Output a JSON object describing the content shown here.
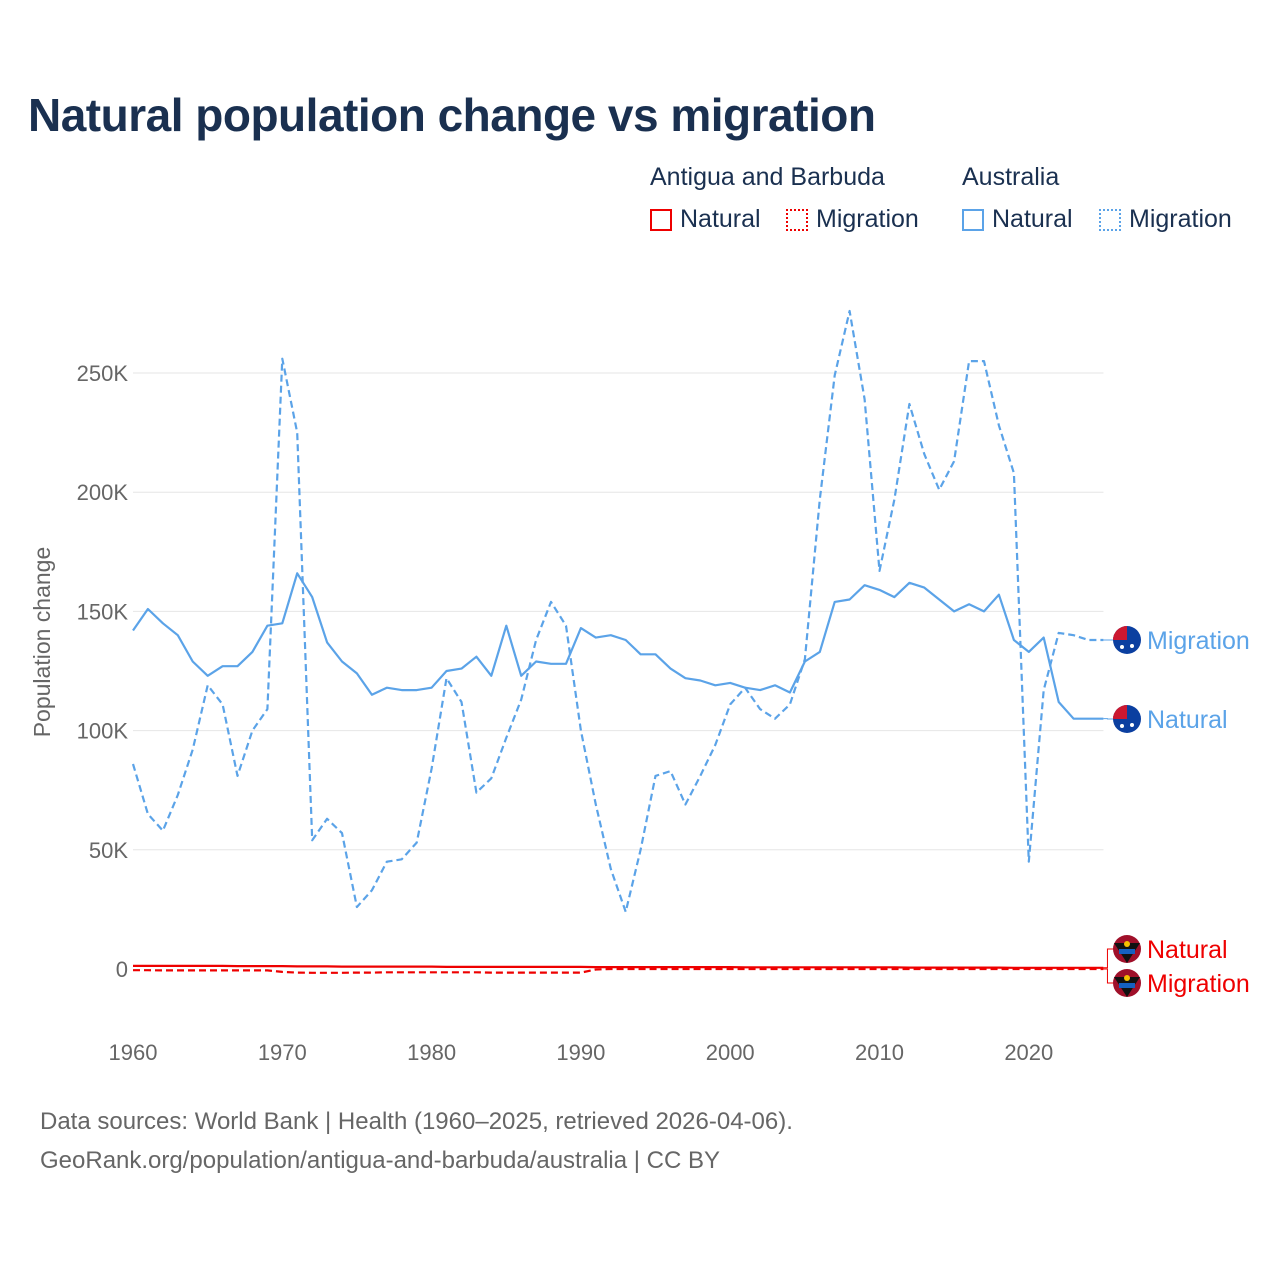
{
  "title": "Natural population change vs migration",
  "legend": {
    "groups": [
      {
        "name": "Antigua and Barbuda",
        "items": [
          "Natural",
          "Migration"
        ],
        "color": "#ee0000"
      },
      {
        "name": "Australia",
        "items": [
          "Natural",
          "Migration"
        ],
        "color": "#5ba3e8"
      }
    ]
  },
  "footer": {
    "line1": "Data sources: World Bank | Health (1960–2025, retrieved 2026-04-06).",
    "line2": "GeoRank.org/population/antigua-and-barbuda/australia | CC BY"
  },
  "chart_data": {
    "type": "line",
    "title": "Natural population change vs migration",
    "xlabel": "",
    "ylabel": "Population change",
    "xlim": [
      1960,
      2025
    ],
    "ylim": [
      -15000,
      280000
    ],
    "x_ticks": [
      1960,
      1970,
      1980,
      1990,
      2000,
      2010,
      2020
    ],
    "x_tick_labels": [
      "1960",
      "1970",
      "1980",
      "1990",
      "2000",
      "2010",
      "2020"
    ],
    "y_ticks": [
      0,
      50000,
      100000,
      150000,
      200000,
      250000
    ],
    "y_tick_labels": [
      "0",
      "50K",
      "100K",
      "150K",
      "200K",
      "250K"
    ],
    "grid": true,
    "x": [
      1960,
      1961,
      1962,
      1963,
      1964,
      1965,
      1966,
      1967,
      1968,
      1969,
      1970,
      1971,
      1972,
      1973,
      1974,
      1975,
      1976,
      1977,
      1978,
      1979,
      1980,
      1981,
      1982,
      1983,
      1984,
      1985,
      1986,
      1987,
      1988,
      1989,
      1990,
      1991,
      1992,
      1993,
      1994,
      1995,
      1996,
      1997,
      1998,
      1999,
      2000,
      2001,
      2002,
      2003,
      2004,
      2005,
      2006,
      2007,
      2008,
      2009,
      2010,
      2011,
      2012,
      2013,
      2014,
      2015,
      2016,
      2017,
      2018,
      2019,
      2020,
      2021,
      2022,
      2023,
      2024,
      2025
    ],
    "series": [
      {
        "name": "Australia Natural",
        "label": "Natural",
        "color": "#5ba3e8",
        "dash": false,
        "values": [
          142000,
          151000,
          145000,
          140000,
          129000,
          123000,
          127000,
          127000,
          133000,
          144000,
          145000,
          166000,
          156000,
          137000,
          129000,
          124000,
          115000,
          118000,
          117000,
          117000,
          118000,
          125000,
          126000,
          131000,
          123000,
          144000,
          123000,
          129000,
          128000,
          128000,
          143000,
          139000,
          140000,
          138000,
          132000,
          132000,
          126000,
          122000,
          121000,
          119000,
          120000,
          118000,
          117000,
          119000,
          116000,
          129000,
          133000,
          154000,
          155000,
          161000,
          159000,
          156000,
          162000,
          160000,
          155000,
          150000,
          153000,
          150000,
          157000,
          138000,
          133000,
          139000,
          112000,
          105000,
          105000,
          105000
        ]
      },
      {
        "name": "Australia Migration",
        "label": "Migration",
        "color": "#5ba3e8",
        "dash": true,
        "values": [
          86000,
          65000,
          58000,
          73000,
          92000,
          119000,
          111000,
          81000,
          100000,
          109000,
          256000,
          225000,
          54000,
          63000,
          57000,
          26000,
          33000,
          45000,
          46000,
          53000,
          84000,
          122000,
          112000,
          74000,
          80000,
          97000,
          113000,
          138000,
          154000,
          144000,
          100000,
          69000,
          42000,
          24000,
          50000,
          81000,
          83000,
          69000,
          81000,
          94000,
          111000,
          118000,
          109000,
          105000,
          111000,
          130000,
          197000,
          249000,
          276000,
          239000,
          167000,
          197000,
          237000,
          216000,
          201000,
          213000,
          255000,
          255000,
          228000,
          208000,
          45000,
          117000,
          141000,
          140000,
          138000,
          138000
        ]
      },
      {
        "name": "Antigua and Barbuda Natural",
        "label": "Natural",
        "color": "#ee0000",
        "dash": false,
        "values": [
          1300,
          1300,
          1300,
          1300,
          1300,
          1300,
          1300,
          1200,
          1200,
          1200,
          1200,
          1100,
          1100,
          1100,
          1000,
          1000,
          1000,
          1000,
          1000,
          1000,
          1000,
          900,
          900,
          900,
          900,
          900,
          900,
          900,
          900,
          900,
          900,
          800,
          800,
          800,
          800,
          800,
          800,
          800,
          800,
          800,
          800,
          700,
          700,
          700,
          700,
          700,
          700,
          700,
          700,
          700,
          700,
          700,
          600,
          600,
          600,
          600,
          600,
          600,
          600,
          500,
          500,
          500,
          500,
          500,
          500,
          500
        ]
      },
      {
        "name": "Antigua and Barbuda Migration",
        "label": "Migration",
        "color": "#ee0000",
        "dash": true,
        "values": [
          -500,
          -500,
          -600,
          -600,
          -600,
          -600,
          -600,
          -600,
          -600,
          -600,
          -1200,
          -1500,
          -1600,
          -1600,
          -1600,
          -1500,
          -1500,
          -1400,
          -1400,
          -1400,
          -1400,
          -1400,
          -1400,
          -1400,
          -1500,
          -1500,
          -1500,
          -1500,
          -1500,
          -1500,
          -1500,
          -200,
          0,
          0,
          0,
          0,
          0,
          0,
          0,
          0,
          0,
          0,
          0,
          0,
          0,
          0,
          0,
          0,
          0,
          0,
          0,
          0,
          0,
          0,
          0,
          0,
          0,
          0,
          0,
          0,
          0,
          0,
          0,
          0,
          0,
          0
        ]
      }
    ],
    "end_labels": [
      "Migration",
      "Natural",
      "Natural",
      "Migration"
    ]
  }
}
